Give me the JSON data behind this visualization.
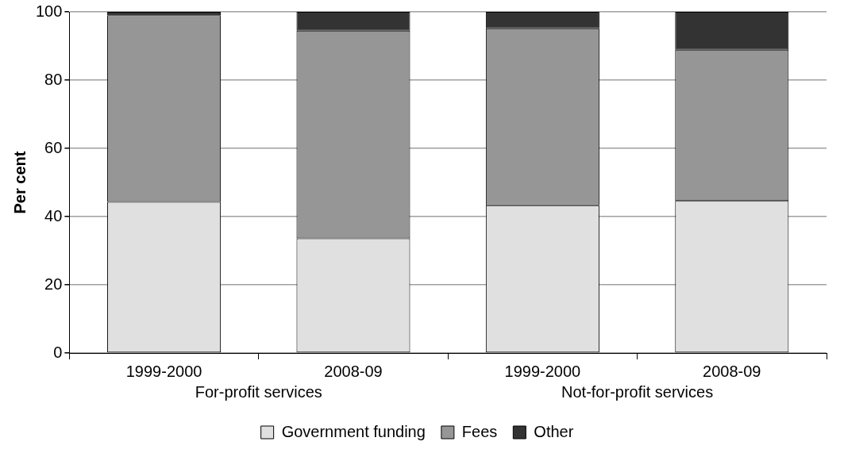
{
  "chart_data": {
    "type": "bar",
    "stacked": true,
    "ylabel": "Per cent",
    "categories": [
      "1999-2000",
      "2008-09",
      "1999-2000",
      "2008-09"
    ],
    "series": [
      {
        "name": "Government funding",
        "color": "#e0e0e0",
        "values": [
          44.3,
          33.6,
          43.3,
          44.6
        ]
      },
      {
        "name": "Fees",
        "color": "#969696",
        "values": [
          54.7,
          60.9,
          51.9,
          44.3
        ]
      },
      {
        "name": "Other",
        "color": "#333333",
        "values": [
          1.0,
          5.5,
          4.8,
          11.1
        ]
      }
    ],
    "ylim": [
      0,
      100
    ],
    "yticks": [
      0,
      20,
      40,
      60,
      80,
      100
    ],
    "grid": "y",
    "legend": "bottom",
    "annotations": [
      "For-profit services",
      "Not-for-profit services"
    ]
  }
}
